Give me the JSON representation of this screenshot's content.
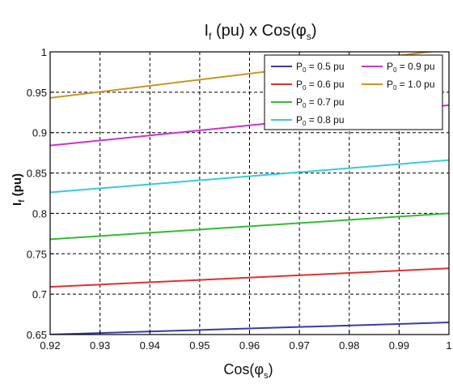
{
  "chart_data": {
    "type": "line",
    "title": {
      "main": "I",
      "main_sub": "f",
      "rest": " (pu) x Cos(φ",
      "rest_sub": "s",
      "end": ")"
    },
    "xlabel": {
      "main": "Cos(φ",
      "sub": "s",
      "end": ")"
    },
    "ylabel": {
      "main": "I",
      "sub": "f",
      "end": " (pu)"
    },
    "xlim": [
      0.92,
      1.0
    ],
    "ylim": [
      0.65,
      1.0
    ],
    "xticks": [
      "0.92",
      "0.93",
      "0.94",
      "0.95",
      "0.96",
      "0.97",
      "0.98",
      "0.99",
      "1"
    ],
    "yticks": [
      "0.65",
      "0.7",
      "0.75",
      "0.8",
      "0.85",
      "0.9",
      "0.95",
      "1"
    ],
    "grid": true,
    "legend_position": "top-right",
    "x": [
      0.92,
      1.0
    ],
    "series": [
      {
        "label_main": "P",
        "label_sub": "0",
        "label_rest": " = 0.5 pu",
        "color": "#3a3aa8",
        "values": [
          0.65,
          0.665
        ]
      },
      {
        "label_main": "P",
        "label_sub": "0",
        "label_rest": " = 0.6 pu",
        "color": "#e03030",
        "values": [
          0.709,
          0.732
        ]
      },
      {
        "label_main": "P",
        "label_sub": "0",
        "label_rest": " = 0.7 pu",
        "color": "#33bb33",
        "values": [
          0.768,
          0.8
        ]
      },
      {
        "label_main": "P",
        "label_sub": "0",
        "label_rest": " = 0.8 pu",
        "color": "#33ccdd",
        "values": [
          0.826,
          0.866
        ]
      },
      {
        "label_main": "P",
        "label_sub": "0",
        "label_rest": " = 0.9 pu",
        "color": "#cc33cc",
        "values": [
          0.884,
          0.934
        ]
      },
      {
        "label_main": "P",
        "label_sub": "0",
        "label_rest": " = 1.0 pu",
        "color": "#c8961e",
        "values": [
          0.943,
          1.003
        ]
      }
    ]
  }
}
